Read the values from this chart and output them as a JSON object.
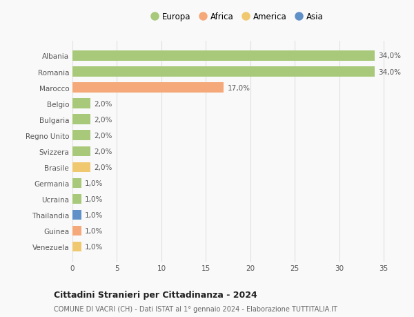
{
  "categories": [
    "Venezuela",
    "Guinea",
    "Thailandia",
    "Ucraina",
    "Germania",
    "Brasile",
    "Svizzera",
    "Regno Unito",
    "Bulgaria",
    "Belgio",
    "Marocco",
    "Romania",
    "Albania"
  ],
  "values": [
    1.0,
    1.0,
    1.0,
    1.0,
    1.0,
    2.0,
    2.0,
    2.0,
    2.0,
    2.0,
    17.0,
    34.0,
    34.0
  ],
  "colors": [
    "#f0c870",
    "#f5a97a",
    "#6090c8",
    "#a8c87a",
    "#a8c87a",
    "#f0c870",
    "#a8c87a",
    "#a8c87a",
    "#a8c87a",
    "#a8c87a",
    "#f5a97a",
    "#a8c87a",
    "#a8c87a"
  ],
  "labels": [
    "1,0%",
    "1,0%",
    "1,0%",
    "1,0%",
    "1,0%",
    "2,0%",
    "2,0%",
    "2,0%",
    "2,0%",
    "2,0%",
    "17,0%",
    "34,0%",
    "34,0%"
  ],
  "xlim": [
    0,
    37
  ],
  "xticks": [
    0,
    5,
    10,
    15,
    20,
    25,
    30,
    35
  ],
  "legend_entries": [
    {
      "label": "Europa",
      "color": "#a8c87a"
    },
    {
      "label": "Africa",
      "color": "#f5a97a"
    },
    {
      "label": "America",
      "color": "#f0c870"
    },
    {
      "label": "Asia",
      "color": "#6090c8"
    }
  ],
  "title": "Cittadini Stranieri per Cittadinanza - 2024",
  "subtitle": "COMUNE DI VACRI (CH) - Dati ISTAT al 1° gennaio 2024 - Elaborazione TUTTITALIA.IT",
  "background_color": "#f9f9f9",
  "grid_color": "#e0e0e0",
  "bar_height": 0.62,
  "label_fontsize": 7.5,
  "ytick_fontsize": 7.5,
  "xtick_fontsize": 7.5
}
